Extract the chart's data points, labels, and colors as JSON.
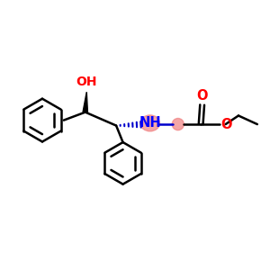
{
  "bg_color": "#ffffff",
  "highlight_color": "#f08080",
  "bond_color": "#000000",
  "bond_width": 1.8,
  "atom_colors": {
    "O": "#ff0000",
    "N": "#0000ff",
    "C": "#000000"
  },
  "label_font_size": 10
}
